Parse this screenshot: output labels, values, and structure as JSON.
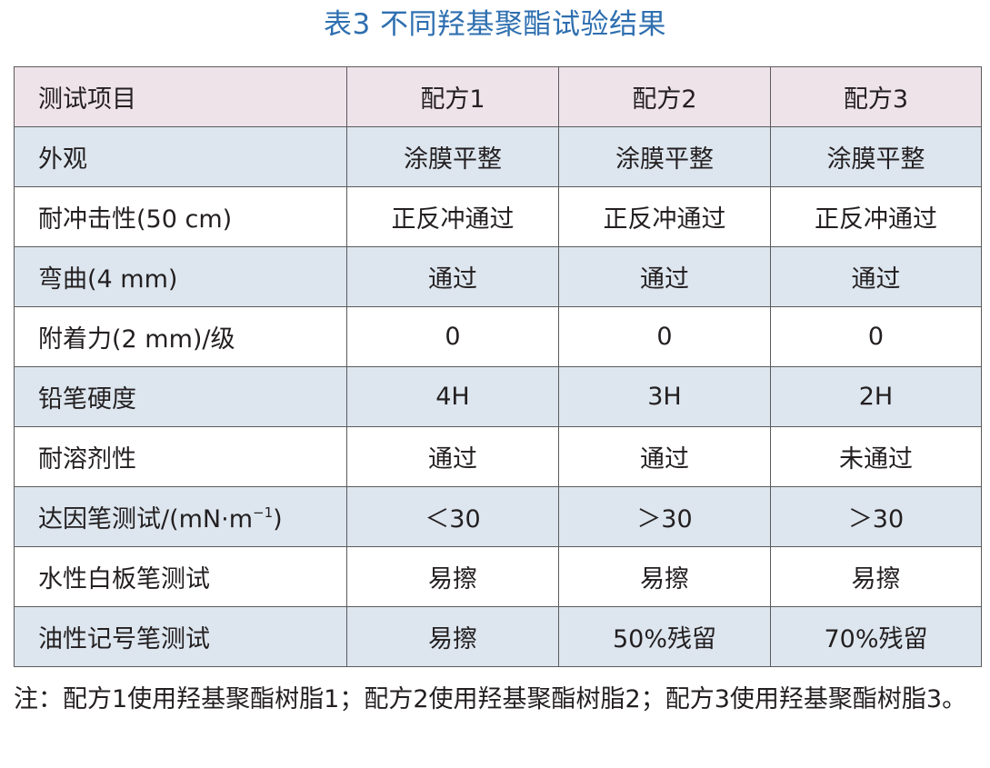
{
  "title": "表3 不同羟基聚酯试验结果",
  "table": {
    "headers": [
      "测试项目",
      "配方1",
      "配方2",
      "配方3"
    ],
    "rows": [
      {
        "item": "外观",
        "values": [
          "涂膜平整",
          "涂膜平整",
          "涂膜平整"
        ]
      },
      {
        "item": "耐冲击性(50 cm)",
        "values": [
          "正反冲通过",
          "正反冲通过",
          "正反冲通过"
        ]
      },
      {
        "item": "弯曲(4 mm)",
        "values": [
          "通过",
          "通过",
          "通过"
        ]
      },
      {
        "item": "附着力(2 mm)/级",
        "values": [
          "0",
          "0",
          "0"
        ]
      },
      {
        "item": "铅笔硬度",
        "values": [
          "4H",
          "3H",
          "2H"
        ]
      },
      {
        "item": "耐溶剂性",
        "values": [
          "通过",
          "通过",
          "未通过"
        ]
      },
      {
        "item": "达因笔测试/(mN·m",
        "item_sup": "−1",
        "item_after": ")",
        "values": [
          "＜30",
          "＞30",
          "＞30"
        ]
      },
      {
        "item": "水性白板笔测试",
        "values": [
          "易擦",
          "易擦",
          "易擦"
        ]
      },
      {
        "item": "油性记号笔测试",
        "values": [
          "易擦",
          "50%残留",
          "70%残留"
        ]
      }
    ]
  },
  "note": "注：配方1使用羟基聚酯树脂1；配方2使用羟基聚酯树脂2；配方3使用羟基聚酯树脂3。"
}
